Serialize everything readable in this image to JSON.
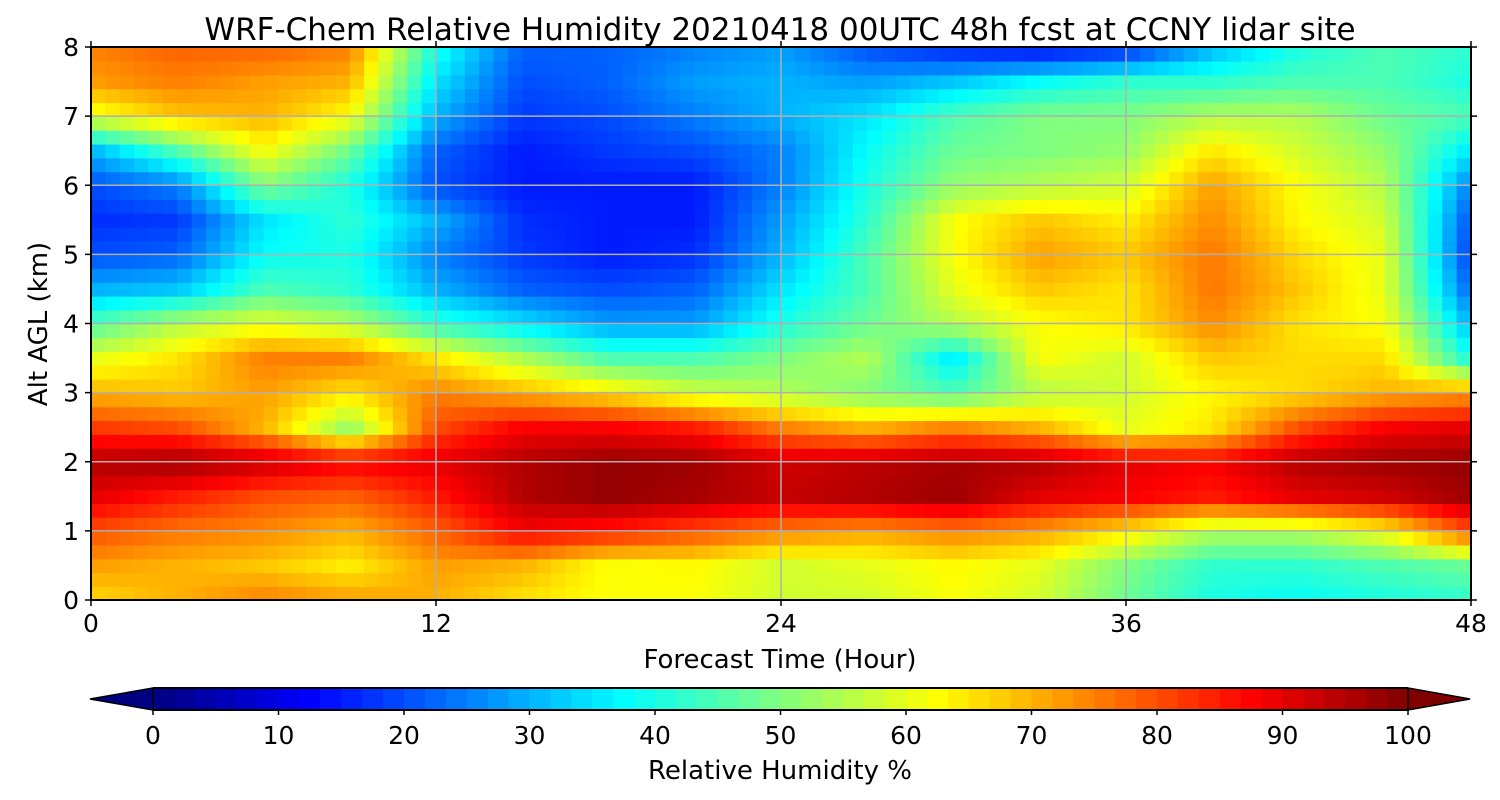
{
  "chart_data": {
    "type": "heatmap",
    "title": "WRF-Chem Relative Humidity 20210418 00UTC 48h fcst at CCNY lidar site",
    "xlabel": "Forecast Time (Hour)",
    "ylabel": "Alt AGL (km)",
    "colorbar_label": "Relative Humidity %",
    "xlim": [
      0,
      48
    ],
    "ylim": [
      0,
      8
    ],
    "clim": [
      0,
      100
    ],
    "x_ticks": [
      0,
      12,
      24,
      36,
      48
    ],
    "y_ticks": [
      0,
      1,
      2,
      3,
      4,
      5,
      6,
      7,
      8
    ],
    "colorbar_ticks": [
      0,
      10,
      20,
      30,
      40,
      50,
      60,
      70,
      80,
      90,
      100
    ],
    "colormap": "jet",
    "grid": true,
    "colorbar_position": "bottom",
    "colorbar_extend": "both",
    "x": [
      0,
      3,
      6,
      9,
      12,
      15,
      18,
      21,
      24,
      27,
      30,
      33,
      36,
      39,
      42,
      45,
      48
    ],
    "y": [
      0,
      0.5,
      1,
      1.5,
      2,
      2.5,
      3,
      3.5,
      4,
      4.5,
      5,
      5.5,
      6,
      6.5,
      7,
      7.5,
      8
    ],
    "values": [
      [
        66,
        70,
        75,
        72,
        70,
        65,
        62,
        62,
        58,
        58,
        62,
        58,
        48,
        40,
        38,
        40,
        42
      ],
      [
        72,
        70,
        68,
        64,
        72,
        70,
        62,
        63,
        58,
        60,
        63,
        60,
        50,
        42,
        42,
        45,
        48
      ],
      [
        80,
        76,
        74,
        70,
        78,
        88,
        85,
        80,
        75,
        72,
        75,
        72,
        65,
        55,
        55,
        62,
        80
      ],
      [
        90,
        85,
        80,
        78,
        85,
        95,
        98,
        96,
        93,
        95,
        97,
        90,
        88,
        85,
        90,
        92,
        97
      ],
      [
        95,
        97,
        93,
        88,
        90,
        95,
        98,
        97,
        92,
        94,
        96,
        95,
        90,
        88,
        95,
        97,
        98
      ],
      [
        82,
        80,
        70,
        52,
        80,
        88,
        88,
        85,
        75,
        70,
        75,
        70,
        60,
        65,
        80,
        88,
        90
      ],
      [
        70,
        68,
        72,
        65,
        75,
        70,
        65,
        58,
        55,
        50,
        45,
        55,
        58,
        63,
        66,
        70,
        72
      ],
      [
        60,
        65,
        75,
        75,
        65,
        55,
        45,
        45,
        50,
        55,
        35,
        62,
        58,
        68,
        66,
        66,
        40
      ],
      [
        45,
        55,
        60,
        55,
        42,
        35,
        28,
        28,
        40,
        48,
        55,
        62,
        65,
        74,
        65,
        62,
        30
      ],
      [
        30,
        32,
        45,
        42,
        30,
        22,
        20,
        22,
        35,
        45,
        60,
        68,
        65,
        76,
        68,
        60,
        22
      ],
      [
        20,
        22,
        38,
        40,
        25,
        18,
        15,
        17,
        30,
        45,
        62,
        72,
        68,
        76,
        66,
        60,
        18
      ],
      [
        17,
        18,
        35,
        42,
        30,
        17,
        15,
        15,
        28,
        42,
        62,
        68,
        64,
        74,
        63,
        58,
        20
      ],
      [
        20,
        25,
        50,
        40,
        20,
        15,
        15,
        15,
        25,
        40,
        52,
        55,
        58,
        72,
        62,
        55,
        25
      ],
      [
        30,
        45,
        62,
        48,
        22,
        15,
        18,
        20,
        25,
        38,
        48,
        50,
        52,
        65,
        58,
        52,
        35
      ],
      [
        60,
        68,
        70,
        62,
        30,
        18,
        20,
        25,
        30,
        35,
        45,
        50,
        50,
        55,
        55,
        48,
        45
      ],
      [
        72,
        75,
        72,
        70,
        35,
        20,
        22,
        28,
        30,
        28,
        32,
        38,
        42,
        42,
        45,
        45,
        40
      ],
      [
        75,
        78,
        78,
        75,
        40,
        22,
        22,
        25,
        28,
        20,
        15,
        12,
        15,
        30,
        40,
        45,
        42
      ]
    ]
  }
}
